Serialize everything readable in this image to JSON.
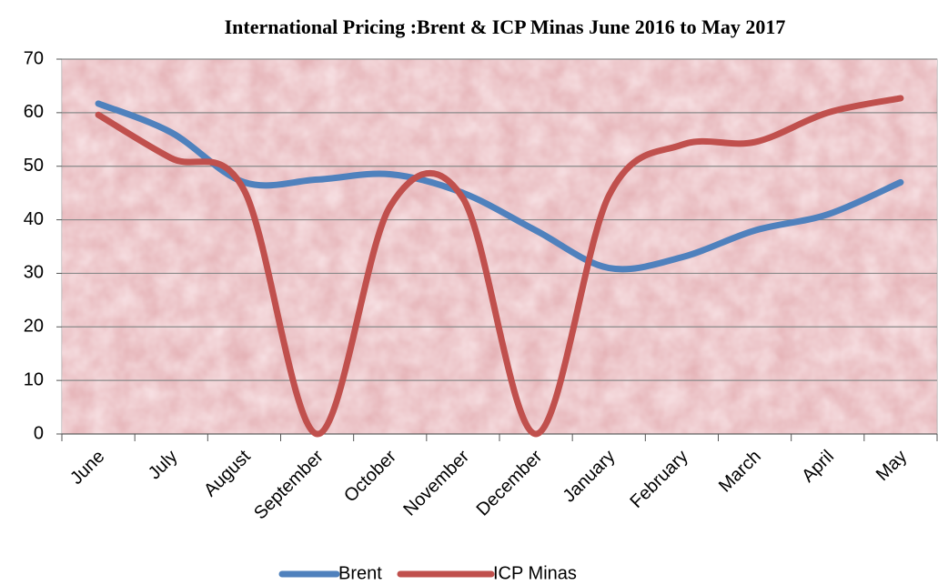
{
  "chart_data": {
    "type": "line",
    "title": "International Pricing :Brent & ICP Minas  June 2016 to May 2017",
    "categories": [
      "June",
      "July",
      "August",
      "September",
      "October",
      "November",
      "December",
      "January",
      "February",
      "March",
      "April",
      "May"
    ],
    "series": [
      {
        "name": "Brent",
        "color": "#4f81bd",
        "values": [
          61.7,
          56.3,
          47,
          47.5,
          48.5,
          45,
          38,
          31,
          33,
          38,
          41,
          47
        ]
      },
      {
        "name": "ICP Minas",
        "color": "#c0504d",
        "values": [
          59.6,
          51.5,
          45.5,
          0,
          42.5,
          44,
          0,
          44.5,
          54,
          54.5,
          60,
          62.7
        ]
      }
    ],
    "ylim": [
      0,
      70
    ],
    "yticks": [
      0,
      10,
      20,
      30,
      40,
      50,
      60,
      70
    ],
    "grid": true,
    "legend": "bottom"
  }
}
